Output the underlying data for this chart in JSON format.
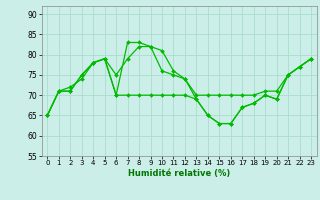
{
  "xlabel": "Humidité relative (%)",
  "background_color": "#cceee8",
  "grid_color": "#aaddcc",
  "line_color": "#00bb00",
  "ylim": [
    55,
    92
  ],
  "yticks": [
    55,
    60,
    65,
    70,
    75,
    80,
    85,
    90
  ],
  "xlim": [
    -0.5,
    23.5
  ],
  "xticks": [
    0,
    1,
    2,
    3,
    4,
    5,
    6,
    7,
    8,
    9,
    10,
    11,
    12,
    13,
    14,
    15,
    16,
    17,
    18,
    19,
    20,
    21,
    22,
    23
  ],
  "s1_y": [
    65,
    71,
    71,
    75,
    78,
    79,
    70,
    83,
    83,
    82,
    81,
    76,
    74,
    70,
    70,
    70,
    70,
    70,
    70,
    71,
    71,
    75,
    77,
    79
  ],
  "s2_y": [
    65,
    71,
    72,
    74,
    78,
    79,
    75,
    79,
    82,
    82,
    76,
    75,
    74,
    69,
    65,
    63,
    63,
    67,
    68,
    70,
    69,
    75,
    77,
    79
  ],
  "s3_y": [
    65,
    71,
    71,
    75,
    78,
    79,
    70,
    70,
    70,
    70,
    70,
    70,
    70,
    69,
    65,
    63,
    63,
    67,
    68,
    70,
    69,
    75,
    77,
    79
  ]
}
